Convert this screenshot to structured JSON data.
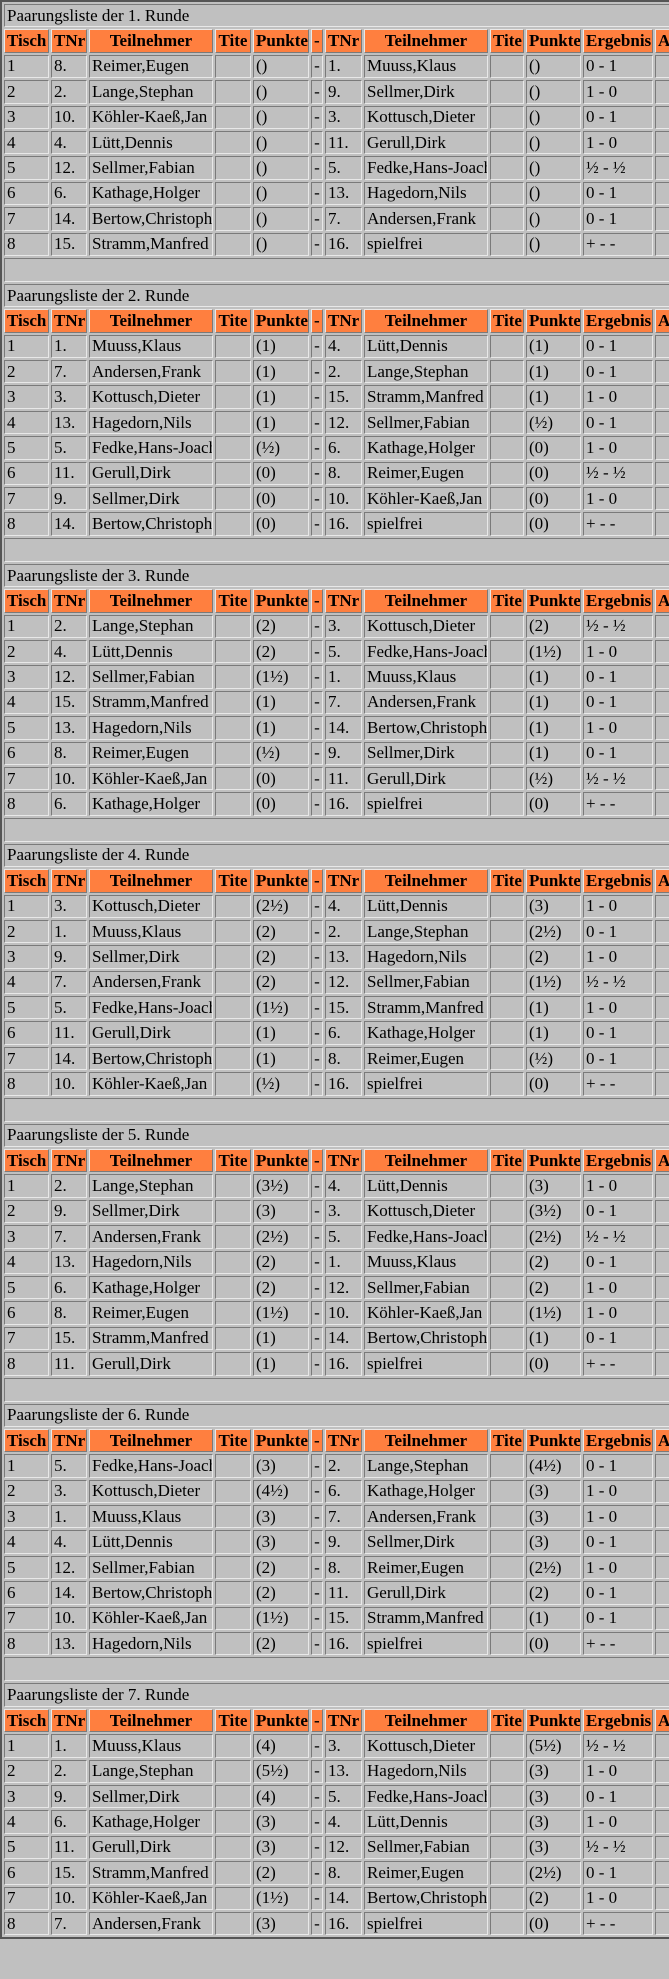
{
  "headers": [
    "Tisch",
    "TNr",
    "Teilnehmer",
    "Tite",
    "Punkte",
    "-",
    "TNr",
    "Teilnehmer",
    "Tite",
    "Punkte",
    "Ergebnis",
    "At"
  ],
  "separator": "-",
  "header_color": "#ff7f3f",
  "rounds": [
    {
      "title": "Paarungsliste der 1. Runde",
      "rows": [
        [
          "1",
          "8.",
          "Reimer,Eugen",
          "()",
          "1.",
          "Muuss,Klaus",
          "()",
          "0 - 1"
        ],
        [
          "2",
          "2.",
          "Lange,Stephan",
          "()",
          "9.",
          "Sellmer,Dirk",
          "()",
          "1 - 0"
        ],
        [
          "3",
          "10.",
          "Köhler-Kaeß,Jan",
          "()",
          "3.",
          "Kottusch,Dieter",
          "()",
          "0 - 1"
        ],
        [
          "4",
          "4.",
          "Lütt,Dennis",
          "()",
          "11.",
          "Gerull,Dirk",
          "()",
          "1 - 0"
        ],
        [
          "5",
          "12.",
          "Sellmer,Fabian",
          "()",
          "5.",
          "Fedke,Hans-Joach",
          "()",
          "½ - ½"
        ],
        [
          "6",
          "6.",
          "Kathage,Holger",
          "()",
          "13.",
          "Hagedorn,Nils",
          "()",
          "0 - 1"
        ],
        [
          "7",
          "14.",
          "Bertow,Christoph",
          "()",
          "7.",
          "Andersen,Frank",
          "()",
          "0 - 1"
        ],
        [
          "8",
          "15.",
          "Stramm,Manfred",
          "()",
          "16.",
          "spielfrei",
          "()",
          "+ - -"
        ]
      ]
    },
    {
      "title": "Paarungsliste der 2. Runde",
      "rows": [
        [
          "1",
          "1.",
          "Muuss,Klaus",
          "(1)",
          "4.",
          "Lütt,Dennis",
          "(1)",
          "0 - 1"
        ],
        [
          "2",
          "7.",
          "Andersen,Frank",
          "(1)",
          "2.",
          "Lange,Stephan",
          "(1)",
          "0 - 1"
        ],
        [
          "3",
          "3.",
          "Kottusch,Dieter",
          "(1)",
          "15.",
          "Stramm,Manfred",
          "(1)",
          "1 - 0"
        ],
        [
          "4",
          "13.",
          "Hagedorn,Nils",
          "(1)",
          "12.",
          "Sellmer,Fabian",
          "(½)",
          "0 - 1"
        ],
        [
          "5",
          "5.",
          "Fedke,Hans-Joach",
          "(½)",
          "6.",
          "Kathage,Holger",
          "(0)",
          "1 - 0"
        ],
        [
          "6",
          "11.",
          "Gerull,Dirk",
          "(0)",
          "8.",
          "Reimer,Eugen",
          "(0)",
          "½ - ½"
        ],
        [
          "7",
          "9.",
          "Sellmer,Dirk",
          "(0)",
          "10.",
          "Köhler-Kaeß,Jan",
          "(0)",
          "1 - 0"
        ],
        [
          "8",
          "14.",
          "Bertow,Christoph",
          "(0)",
          "16.",
          "spielfrei",
          "(0)",
          "+ - -"
        ]
      ]
    },
    {
      "title": "Paarungsliste der 3. Runde",
      "rows": [
        [
          "1",
          "2.",
          "Lange,Stephan",
          "(2)",
          "3.",
          "Kottusch,Dieter",
          "(2)",
          "½ - ½"
        ],
        [
          "2",
          "4.",
          "Lütt,Dennis",
          "(2)",
          "5.",
          "Fedke,Hans-Joach",
          "(1½)",
          "1 - 0"
        ],
        [
          "3",
          "12.",
          "Sellmer,Fabian",
          "(1½)",
          "1.",
          "Muuss,Klaus",
          "(1)",
          "0 - 1"
        ],
        [
          "4",
          "15.",
          "Stramm,Manfred",
          "(1)",
          "7.",
          "Andersen,Frank",
          "(1)",
          "0 - 1"
        ],
        [
          "5",
          "13.",
          "Hagedorn,Nils",
          "(1)",
          "14.",
          "Bertow,Christoph",
          "(1)",
          "1 - 0"
        ],
        [
          "6",
          "8.",
          "Reimer,Eugen",
          "(½)",
          "9.",
          "Sellmer,Dirk",
          "(1)",
          "0 - 1"
        ],
        [
          "7",
          "10.",
          "Köhler-Kaeß,Jan",
          "(0)",
          "11.",
          "Gerull,Dirk",
          "(½)",
          "½ - ½"
        ],
        [
          "8",
          "6.",
          "Kathage,Holger",
          "(0)",
          "16.",
          "spielfrei",
          "(0)",
          "+ - -"
        ]
      ]
    },
    {
      "title": "Paarungsliste der 4. Runde",
      "rows": [
        [
          "1",
          "3.",
          "Kottusch,Dieter",
          "(2½)",
          "4.",
          "Lütt,Dennis",
          "(3)",
          "1 - 0"
        ],
        [
          "2",
          "1.",
          "Muuss,Klaus",
          "(2)",
          "2.",
          "Lange,Stephan",
          "(2½)",
          "0 - 1"
        ],
        [
          "3",
          "9.",
          "Sellmer,Dirk",
          "(2)",
          "13.",
          "Hagedorn,Nils",
          "(2)",
          "1 - 0"
        ],
        [
          "4",
          "7.",
          "Andersen,Frank",
          "(2)",
          "12.",
          "Sellmer,Fabian",
          "(1½)",
          "½ - ½"
        ],
        [
          "5",
          "5.",
          "Fedke,Hans-Joach",
          "(1½)",
          "15.",
          "Stramm,Manfred",
          "(1)",
          "1 - 0"
        ],
        [
          "6",
          "11.",
          "Gerull,Dirk",
          "(1)",
          "6.",
          "Kathage,Holger",
          "(1)",
          "0 - 1"
        ],
        [
          "7",
          "14.",
          "Bertow,Christoph",
          "(1)",
          "8.",
          "Reimer,Eugen",
          "(½)",
          "0 - 1"
        ],
        [
          "8",
          "10.",
          "Köhler-Kaeß,Jan",
          "(½)",
          "16.",
          "spielfrei",
          "(0)",
          "+ - -"
        ]
      ]
    },
    {
      "title": "Paarungsliste der 5. Runde",
      "rows": [
        [
          "1",
          "2.",
          "Lange,Stephan",
          "(3½)",
          "4.",
          "Lütt,Dennis",
          "(3)",
          "1 - 0"
        ],
        [
          "2",
          "9.",
          "Sellmer,Dirk",
          "(3)",
          "3.",
          "Kottusch,Dieter",
          "(3½)",
          "0 - 1"
        ],
        [
          "3",
          "7.",
          "Andersen,Frank",
          "(2½)",
          "5.",
          "Fedke,Hans-Joach",
          "(2½)",
          "½ - ½"
        ],
        [
          "4",
          "13.",
          "Hagedorn,Nils",
          "(2)",
          "1.",
          "Muuss,Klaus",
          "(2)",
          "0 - 1"
        ],
        [
          "5",
          "6.",
          "Kathage,Holger",
          "(2)",
          "12.",
          "Sellmer,Fabian",
          "(2)",
          "1 - 0"
        ],
        [
          "6",
          "8.",
          "Reimer,Eugen",
          "(1½)",
          "10.",
          "Köhler-Kaeß,Jan",
          "(1½)",
          "1 - 0"
        ],
        [
          "7",
          "15.",
          "Stramm,Manfred",
          "(1)",
          "14.",
          "Bertow,Christoph",
          "(1)",
          "0 - 1"
        ],
        [
          "8",
          "11.",
          "Gerull,Dirk",
          "(1)",
          "16.",
          "spielfrei",
          "(0)",
          "+ - -"
        ]
      ]
    },
    {
      "title": "Paarungsliste der 6. Runde",
      "rows": [
        [
          "1",
          "5.",
          "Fedke,Hans-Joach",
          "(3)",
          "2.",
          "Lange,Stephan",
          "(4½)",
          "0 - 1"
        ],
        [
          "2",
          "3.",
          "Kottusch,Dieter",
          "(4½)",
          "6.",
          "Kathage,Holger",
          "(3)",
          "1 - 0"
        ],
        [
          "3",
          "1.",
          "Muuss,Klaus",
          "(3)",
          "7.",
          "Andersen,Frank",
          "(3)",
          "1 - 0"
        ],
        [
          "4",
          "4.",
          "Lütt,Dennis",
          "(3)",
          "9.",
          "Sellmer,Dirk",
          "(3)",
          "0 - 1"
        ],
        [
          "5",
          "12.",
          "Sellmer,Fabian",
          "(2)",
          "8.",
          "Reimer,Eugen",
          "(2½)",
          "1 - 0"
        ],
        [
          "6",
          "14.",
          "Bertow,Christoph",
          "(2)",
          "11.",
          "Gerull,Dirk",
          "(2)",
          "0 - 1"
        ],
        [
          "7",
          "10.",
          "Köhler-Kaeß,Jan",
          "(1½)",
          "15.",
          "Stramm,Manfred",
          "(1)",
          "0 - 1"
        ],
        [
          "8",
          "13.",
          "Hagedorn,Nils",
          "(2)",
          "16.",
          "spielfrei",
          "(0)",
          "+ - -"
        ]
      ]
    },
    {
      "title": "Paarungsliste der 7. Runde",
      "rows": [
        [
          "1",
          "1.",
          "Muuss,Klaus",
          "(4)",
          "3.",
          "Kottusch,Dieter",
          "(5½)",
          "½ - ½"
        ],
        [
          "2",
          "2.",
          "Lange,Stephan",
          "(5½)",
          "13.",
          "Hagedorn,Nils",
          "(3)",
          "1 - 0"
        ],
        [
          "3",
          "9.",
          "Sellmer,Dirk",
          "(4)",
          "5.",
          "Fedke,Hans-Joach",
          "(3)",
          "0 - 1"
        ],
        [
          "4",
          "6.",
          "Kathage,Holger",
          "(3)",
          "4.",
          "Lütt,Dennis",
          "(3)",
          "1 - 0"
        ],
        [
          "5",
          "11.",
          "Gerull,Dirk",
          "(3)",
          "12.",
          "Sellmer,Fabian",
          "(3)",
          "½ - ½"
        ],
        [
          "6",
          "15.",
          "Stramm,Manfred",
          "(2)",
          "8.",
          "Reimer,Eugen",
          "(2½)",
          "0 - 1"
        ],
        [
          "7",
          "10.",
          "Köhler-Kaeß,Jan",
          "(1½)",
          "14.",
          "Bertow,Christoph",
          "(2)",
          "1 - 0"
        ],
        [
          "8",
          "7.",
          "Andersen,Frank",
          "(3)",
          "16.",
          "spielfrei",
          "(0)",
          "+ - -"
        ]
      ]
    }
  ]
}
